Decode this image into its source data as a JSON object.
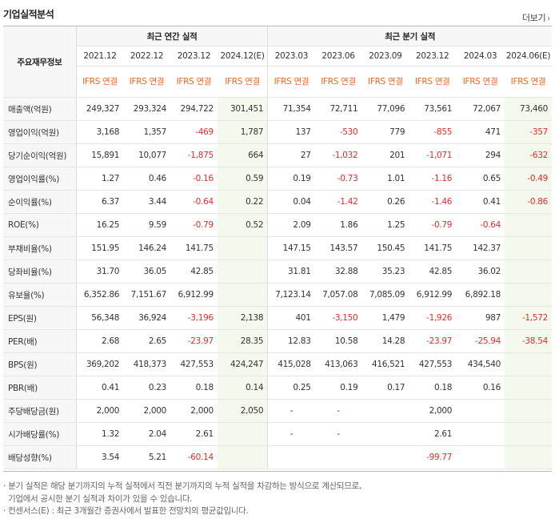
{
  "header": {
    "title": "기업실적분석",
    "more_label": "더보기",
    "more_icon": "chevron-right-icon"
  },
  "table": {
    "row_header_label": "주요재무정보",
    "group_annual": "최근 연간 실적",
    "group_quarter": "최근 분기 실적",
    "periods": [
      "2021.12",
      "2022.12",
      "2023.12",
      "2024.12(E)",
      "2023.03",
      "2023.06",
      "2023.09",
      "2023.12",
      "2024.03",
      "2024.06(E)"
    ],
    "accounting": [
      "IFRS 연결",
      "IFRS 연결",
      "IFRS 연결",
      "IFRS 연결",
      "IFRS 연결",
      "IFRS 연결",
      "IFRS 연결",
      "IFRS 연결",
      "IFRS 연결",
      "IFRS 연결"
    ],
    "rows": [
      {
        "label": "매출액(억원)",
        "values": [
          "249,327",
          "293,324",
          "294,722",
          "301,451",
          "71,354",
          "72,711",
          "77,096",
          "73,561",
          "72,067",
          "73,460"
        ]
      },
      {
        "label": "영업이익(억원)",
        "values": [
          "3,168",
          "1,357",
          "-469",
          "1,787",
          "137",
          "-530",
          "779",
          "-855",
          "471",
          "-357"
        ]
      },
      {
        "label": "당기순이익(억원)",
        "values": [
          "15,891",
          "10,077",
          "-1,875",
          "664",
          "27",
          "-1,032",
          "201",
          "-1,071",
          "294",
          "-632"
        ]
      },
      {
        "label": "영업이익률(%)",
        "values": [
          "1.27",
          "0.46",
          "-0.16",
          "0.59",
          "0.19",
          "-0.73",
          "1.01",
          "-1.16",
          "0.65",
          "-0.49"
        ]
      },
      {
        "label": "순이익률(%)",
        "values": [
          "6.37",
          "3.44",
          "-0.64",
          "0.22",
          "0.04",
          "-1.42",
          "0.26",
          "-1.46",
          "0.41",
          "-0.86"
        ]
      },
      {
        "label": "ROE(%)",
        "values": [
          "16.25",
          "9.59",
          "-0.79",
          "0.52",
          "2.09",
          "1.86",
          "1.25",
          "-0.79",
          "-0.64",
          ""
        ]
      },
      {
        "label": "부채비율(%)",
        "values": [
          "151.95",
          "146.24",
          "141.75",
          "",
          "147.15",
          "143.57",
          "150.45",
          "141.75",
          "142.37",
          ""
        ]
      },
      {
        "label": "당좌비율(%)",
        "values": [
          "31.70",
          "36.05",
          "42.85",
          "",
          "31.81",
          "32.88",
          "35.23",
          "42.85",
          "36.02",
          ""
        ]
      },
      {
        "label": "유보율(%)",
        "values": [
          "6,352.86",
          "7,151.67",
          "6,912.99",
          "",
          "7,123.14",
          "7,057.08",
          "7,085.09",
          "6,912.99",
          "6,892.18",
          ""
        ]
      },
      {
        "label": "EPS(원)",
        "values": [
          "56,348",
          "36,924",
          "-3,196",
          "2,138",
          "401",
          "-3,150",
          "1,479",
          "-1,926",
          "987",
          "-1,572"
        ]
      },
      {
        "label": "PER(배)",
        "values": [
          "2.68",
          "2.65",
          "-23.97",
          "28.35",
          "12.83",
          "10.58",
          "14.28",
          "-23.97",
          "-25.94",
          "-38.54"
        ]
      },
      {
        "label": "BPS(원)",
        "values": [
          "369,202",
          "418,373",
          "427,553",
          "424,247",
          "415,028",
          "413,063",
          "416,521",
          "427,553",
          "434,540",
          ""
        ]
      },
      {
        "label": "PBR(배)",
        "values": [
          "0.41",
          "0.23",
          "0.18",
          "0.14",
          "0.25",
          "0.19",
          "0.17",
          "0.18",
          "0.16",
          ""
        ]
      },
      {
        "label": "주당배당금(원)",
        "values": [
          "2,000",
          "2,000",
          "2,000",
          "2,050",
          "-",
          "-",
          "",
          "2,000",
          "",
          ""
        ]
      },
      {
        "label": "시가배당률(%)",
        "values": [
          "1.32",
          "2.04",
          "2.61",
          "",
          "-",
          "-",
          "",
          "2.61",
          "",
          ""
        ]
      },
      {
        "label": "배당성향(%)",
        "values": [
          "3.54",
          "5.21",
          "-60.14",
          "",
          "",
          "",
          "",
          "-99.77",
          "",
          ""
        ]
      }
    ]
  },
  "footnotes": [
    "· 분기 실적은 해당 분기까지의 누적 실적에서 직전 분기까지의 누적 실적을 차감하는 방식으로 계산되므로,",
    "  기업에서 공시한 분기 실적과 차이가 있을 수 있습니다.",
    "· 컨센서스(E) : 최근 3개월간 증권사에서 발표한 전망치의 평균값입니다."
  ],
  "colors": {
    "negative": "#e8292b",
    "accounting": "#f26522",
    "estimate_bg": "#f4f9ee"
  }
}
